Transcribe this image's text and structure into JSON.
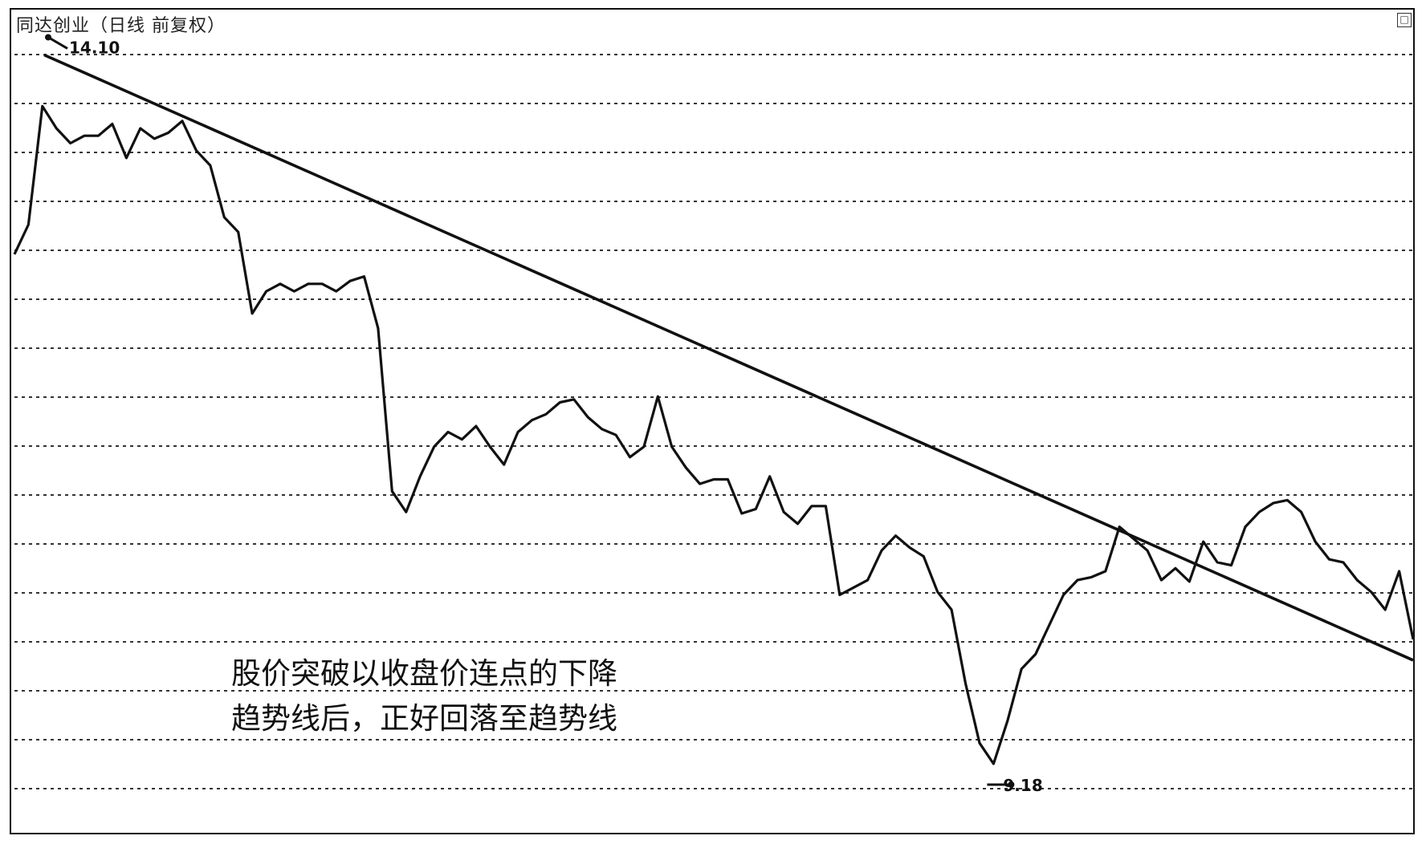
{
  "window": {
    "title": "同达创业（日线 前复权）",
    "corner_button": "□"
  },
  "annotation": {
    "line1": "股价突破以收盘价连点的下降",
    "line2": "趋势线后，正好回落至趋势线"
  },
  "markers": {
    "high": "14.10",
    "low": "9.18"
  },
  "colors": {
    "background": "#ffffff",
    "line": "#111111",
    "grid": "#333333"
  },
  "chart_data": {
    "type": "line",
    "title": "同达创业（日线 前复权）",
    "xlabel": "",
    "ylabel": "",
    "grid": true,
    "ylim": [
      9.0,
      14.2
    ],
    "series": [
      {
        "values": [
          12.7,
          12.9,
          13.7,
          13.55,
          13.45,
          13.5,
          13.5,
          13.58,
          13.35,
          13.55,
          13.48,
          13.52,
          13.6,
          13.4,
          13.3,
          12.95,
          12.85,
          12.3,
          12.45,
          12.5,
          12.45,
          12.5,
          12.5,
          12.45,
          12.52,
          12.55,
          12.2,
          11.1,
          10.96,
          11.2,
          11.4,
          11.5,
          11.45,
          11.54,
          11.4,
          11.28,
          11.5,
          11.58,
          11.62,
          11.7,
          11.72,
          11.6,
          11.52,
          11.48,
          11.33,
          11.4,
          11.74,
          11.4,
          11.26,
          11.15,
          11.18,
          11.18,
          10.95,
          10.98,
          11.2,
          10.96,
          10.88,
          11.0,
          11.0,
          10.4,
          10.45,
          10.5,
          10.7,
          10.8,
          10.72,
          10.66,
          10.42,
          10.3,
          9.8,
          9.4,
          9.26,
          9.55,
          9.9,
          10.0,
          10.2,
          10.4,
          10.5,
          10.52,
          10.56,
          10.86,
          10.78,
          10.7,
          10.5,
          10.58,
          10.49,
          10.76,
          10.62,
          10.6,
          10.86,
          10.96,
          11.02,
          11.04,
          10.96,
          10.76,
          10.64,
          10.62,
          10.5,
          10.42,
          10.3,
          10.56,
          10.1
        ],
        "markers": {
          "max": 14.1,
          "min": 9.18
        }
      }
    ],
    "trendline": {
      "start_value": 14.1,
      "end_value": 10.1,
      "type": "descending"
    }
  }
}
